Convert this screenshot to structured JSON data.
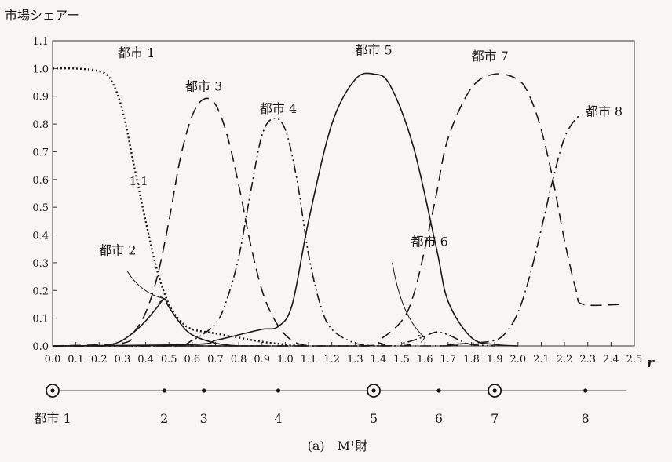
{
  "chart_data": {
    "type": "line",
    "ylabel": "市場シェアー",
    "xlabel": "r",
    "caption": "(a)　M¹財",
    "xlim": [
      0.0,
      2.5
    ],
    "ylim": [
      0.0,
      1.1
    ],
    "xticks": [
      "0.0",
      "0.1",
      "0.2",
      "0.3",
      "0.4",
      "0.5",
      "0.6",
      "0.7",
      "0.8",
      "0.9",
      "1.0",
      "1.1",
      "1.2",
      "1.3",
      "1.4",
      "1.5",
      "1.6",
      "1.7",
      "1.8",
      "1.9",
      "2.0",
      "2.1",
      "2.2",
      "2.3",
      "2.4",
      "2.5"
    ],
    "yticks": [
      "0.0",
      "0.1",
      "0.2",
      "0.3",
      "0.4",
      "0.5",
      "0.6",
      "0.7",
      "0.8",
      "0.9",
      "1.0",
      "1.1"
    ],
    "grid": false,
    "annotation": "1.1",
    "series": [
      {
        "name": "都市 1",
        "style": "dotted",
        "x": [
          0.0,
          0.1,
          0.2,
          0.25,
          0.3,
          0.35,
          0.4,
          0.45,
          0.5,
          0.55,
          0.6,
          0.7,
          0.8,
          0.9,
          1.0,
          1.1
        ],
        "y": [
          1.0,
          1.0,
          0.99,
          0.96,
          0.85,
          0.65,
          0.45,
          0.27,
          0.15,
          0.09,
          0.06,
          0.045,
          0.03,
          0.015,
          0.005,
          0.0
        ]
      },
      {
        "name": "都市 2",
        "style": "solid",
        "x": [
          0.0,
          0.2,
          0.25,
          0.3,
          0.35,
          0.4,
          0.45,
          0.48,
          0.5,
          0.55,
          0.6,
          0.7,
          0.8,
          0.9
        ],
        "y": [
          0.0,
          0.0,
          0.005,
          0.02,
          0.05,
          0.09,
          0.14,
          0.17,
          0.14,
          0.08,
          0.04,
          0.01,
          0.0,
          0.0
        ]
      },
      {
        "name": "都市 3",
        "style": "dashed",
        "x": [
          0.0,
          0.3,
          0.35,
          0.4,
          0.45,
          0.5,
          0.55,
          0.6,
          0.65,
          0.7,
          0.75,
          0.8,
          0.85,
          0.9,
          0.95,
          1.0,
          1.05,
          1.1
        ],
        "y": [
          0.0,
          0.01,
          0.05,
          0.12,
          0.25,
          0.45,
          0.68,
          0.83,
          0.89,
          0.87,
          0.76,
          0.58,
          0.37,
          0.2,
          0.1,
          0.04,
          0.01,
          0.0
        ]
      },
      {
        "name": "都市 4",
        "style": "dashdotdot",
        "x": [
          0.0,
          0.5,
          0.6,
          0.7,
          0.75,
          0.8,
          0.85,
          0.9,
          0.95,
          1.0,
          1.05,
          1.1,
          1.15,
          1.2,
          1.3,
          1.4
        ],
        "y": [
          0.0,
          0.0,
          0.02,
          0.08,
          0.17,
          0.32,
          0.55,
          0.76,
          0.82,
          0.78,
          0.6,
          0.33,
          0.15,
          0.06,
          0.01,
          0.0
        ]
      },
      {
        "name": "都市 5",
        "style": "solid",
        "x": [
          0.0,
          0.6,
          0.7,
          0.8,
          0.9,
          0.97,
          1.03,
          1.1,
          1.2,
          1.3,
          1.38,
          1.45,
          1.55,
          1.65,
          1.7,
          1.8,
          1.9,
          2.0
        ],
        "y": [
          0.0,
          0.005,
          0.02,
          0.04,
          0.06,
          0.07,
          0.15,
          0.45,
          0.8,
          0.96,
          0.98,
          0.94,
          0.72,
          0.35,
          0.16,
          0.03,
          0.005,
          0.0
        ]
      },
      {
        "name": "都市 6",
        "style": "dashdotdot",
        "x": [
          0.0,
          1.4,
          1.5,
          1.55,
          1.6,
          1.65,
          1.7,
          1.75,
          1.8,
          1.9
        ],
        "y": [
          0.0,
          0.0,
          0.01,
          0.02,
          0.035,
          0.05,
          0.04,
          0.02,
          0.005,
          0.0
        ]
      },
      {
        "name": "都市 7",
        "style": "dashed",
        "x": [
          0.0,
          1.3,
          1.4,
          1.5,
          1.55,
          1.6,
          1.65,
          1.7,
          1.8,
          1.9,
          2.0,
          2.05,
          2.1,
          2.15,
          2.2,
          2.25,
          2.28,
          2.45
        ],
        "y": [
          0.0,
          0.0,
          0.02,
          0.09,
          0.18,
          0.35,
          0.55,
          0.75,
          0.93,
          0.98,
          0.96,
          0.9,
          0.78,
          0.6,
          0.38,
          0.2,
          0.15,
          0.15
        ]
      },
      {
        "name": "都市 8",
        "style": "dashdot",
        "x": [
          0.0,
          1.6,
          1.7,
          1.8,
          1.9,
          1.95,
          2.0,
          2.05,
          2.1,
          2.15,
          2.2,
          2.25,
          2.28
        ],
        "y": [
          0.0,
          0.0,
          0.005,
          0.01,
          0.02,
          0.05,
          0.12,
          0.25,
          0.42,
          0.6,
          0.75,
          0.82,
          0.83
        ]
      }
    ],
    "axis_points": [
      {
        "r": 0.0,
        "label": "都市 1",
        "marker": "ring"
      },
      {
        "r": 0.48,
        "label": "2",
        "marker": "dot"
      },
      {
        "r": 0.65,
        "label": "3",
        "marker": "dot"
      },
      {
        "r": 0.97,
        "label": "4",
        "marker": "dot"
      },
      {
        "r": 1.38,
        "label": "5",
        "marker": "ring"
      },
      {
        "r": 1.66,
        "label": "6",
        "marker": "dot"
      },
      {
        "r": 1.9,
        "label": "7",
        "marker": "ring"
      },
      {
        "r": 2.29,
        "label": "8",
        "marker": "dot"
      }
    ],
    "axis_line_end": 2.5
  }
}
